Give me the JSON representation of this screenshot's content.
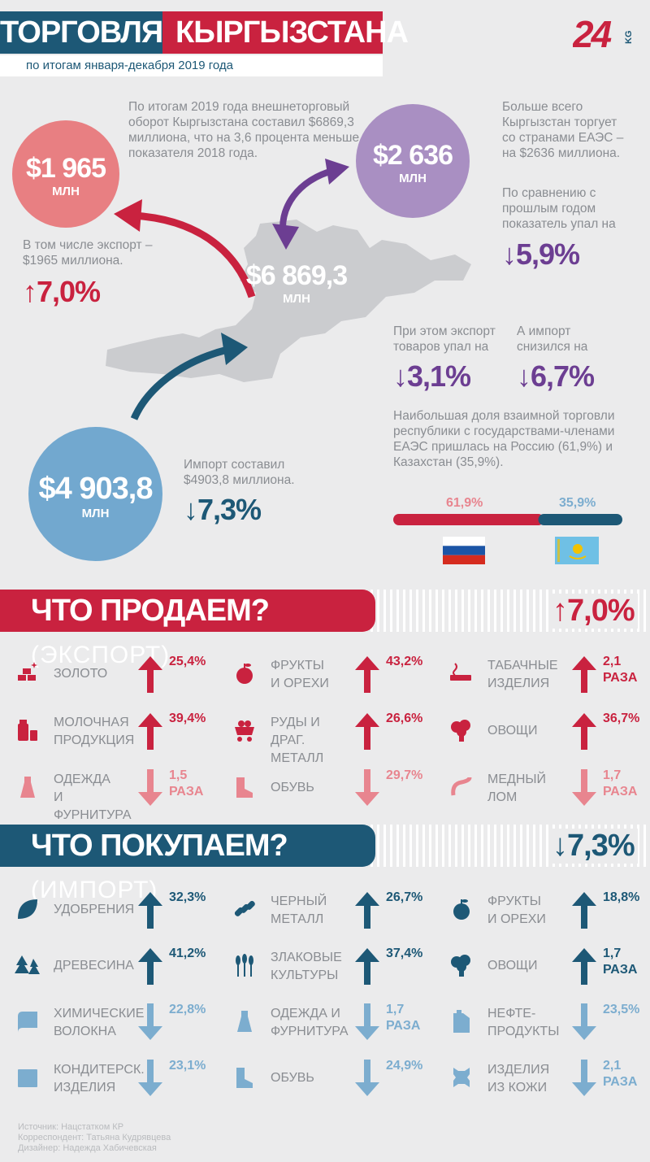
{
  "header": {
    "title_a": "ТОРГОВЛЯ",
    "title_b": "КЫРГЫЗСТАНА",
    "subtitle": "по итогам января-декабря 2019 года",
    "logo": "24.kg"
  },
  "colors": {
    "red": "#c9223f",
    "blue": "#1d5876",
    "purple": "#6c3e92",
    "light_red": "#e8858f",
    "light_blue": "#7cadcf"
  },
  "top": {
    "total_text": "По итогам 2019 года внешнеторговый оборот Кыргызстана составил $6869,3 миллиона, что на 3,6 процента меньше показателя 2018 года.",
    "export_circle": {
      "value": "$1 965",
      "unit": "МЛН"
    },
    "export_text": "В том числе экспорт – $1965 миллиона.",
    "export_pct": "7,0%",
    "eaeu_circle": {
      "value": "$2 636",
      "unit": "МЛН"
    },
    "eaeu_text": "Больше всего Кыргызстан торгует со странами ЕАЭС – на $2636 миллиона.",
    "eaeu_compare_text": "По сравнению с прошлым годом показатель упал на",
    "eaeu_pct": "5,9%",
    "total_map": {
      "value": "$6 869,3",
      "unit": "МЛН"
    },
    "eaeu_export_text": "При этом экспорт товаров упал на",
    "eaeu_export_pct": "3,1%",
    "eaeu_import_text": "А импорт снизился на",
    "eaeu_import_pct": "6,7%",
    "share_text": "Наибольшая доля взаимной торговли республики с государствами-членами ЕАЭС пришлась на Россию (61,9%) и Казахстан (35,9%).",
    "russia_share": 61.9,
    "russia_label": "61,9%",
    "kz_share": 35.9,
    "kz_label": "35,9%",
    "import_circle": {
      "value": "$4 903,8",
      "unit": "МЛН"
    },
    "import_text": "Импорт составил $4903,8 миллиона.",
    "import_pct": "7,3%"
  },
  "export": {
    "title": "ЧТО ПРОДАЕМ?",
    "title_sub": "(ЭКСПОРТ)",
    "pct": "7,0%",
    "items": [
      {
        "label": "ЗОЛОТО",
        "value": "25,4%",
        "dir": "up",
        "icon": "gold-bars-icon"
      },
      {
        "label": "ФРУКТЫ\nИ ОРЕХИ",
        "value": "43,2%",
        "dir": "up",
        "icon": "apple-icon"
      },
      {
        "label": "ТАБАЧНЫЕ\nИЗДЕЛИЯ",
        "value": "2,1\nРАЗА",
        "dir": "up",
        "icon": "cigarette-icon"
      },
      {
        "label": "МОЛОЧНАЯ\nПРОДУКЦИЯ",
        "value": "39,4%",
        "dir": "up",
        "icon": "milk-icon"
      },
      {
        "label": "РУДЫ И\nДРАГ. МЕТАЛЛ",
        "value": "26,6%",
        "dir": "up",
        "icon": "ore-cart-icon"
      },
      {
        "label": "ОВОЩИ",
        "value": "36,7%",
        "dir": "up",
        "icon": "broccoli-icon"
      },
      {
        "label": "ОДЕЖДА\nИ ФУРНИТУРА",
        "value": "1,5\nРАЗА",
        "dir": "down",
        "icon": "dress-icon"
      },
      {
        "label": "ОБУВЬ",
        "value": "29,7%",
        "dir": "down",
        "icon": "boot-icon"
      },
      {
        "label": "МЕДНЫЙ\nЛОМ",
        "value": "1,7\nРАЗА",
        "dir": "down",
        "icon": "copper-scrap-icon"
      }
    ]
  },
  "import": {
    "title": "ЧТО ПОКУПАЕМ?",
    "title_sub": "(ИМПОРТ)",
    "pct": "7,3%",
    "items": [
      {
        "label": "УДОБРЕНИЯ",
        "value": "32,3%",
        "dir": "up",
        "icon": "leaf-icon"
      },
      {
        "label": "ЧЕРНЫЙ\nМЕТАЛЛ",
        "value": "26,7%",
        "dir": "up",
        "icon": "chain-icon"
      },
      {
        "label": "ФРУКТЫ\nИ ОРЕХИ",
        "value": "18,8%",
        "dir": "up",
        "icon": "apple-icon"
      },
      {
        "label": "ДРЕВЕСИНА",
        "value": "41,2%",
        "dir": "up",
        "icon": "trees-icon"
      },
      {
        "label": "ЗЛАКОВЫЕ\nКУЛЬТУРЫ",
        "value": "37,4%",
        "dir": "up",
        "icon": "wheat-icon"
      },
      {
        "label": "ОВОЩИ",
        "value": "1,7\nРАЗА",
        "dir": "up",
        "icon": "broccoli-icon"
      },
      {
        "label": "ХИМИЧЕСКИЕ\nВОЛОКНА",
        "value": "22,8%",
        "dir": "down",
        "icon": "fabric-roll-icon"
      },
      {
        "label": "ОДЕЖДА И\nФУРНИТУРА",
        "value": "1,7\nРАЗА",
        "dir": "down",
        "icon": "dress-icon"
      },
      {
        "label": "НЕФТЕ-\nПРОДУКТЫ",
        "value": "23,5%",
        "dir": "down",
        "icon": "canister-icon"
      },
      {
        "label": "КОНДИТЕРСК.\nИЗДЕЛИЯ",
        "value": "23,1%",
        "dir": "down",
        "icon": "chocolate-icon"
      },
      {
        "label": "ОБУВЬ",
        "value": "24,9%",
        "dir": "down",
        "icon": "boot-icon"
      },
      {
        "label": "ИЗДЕЛИЯ\nИЗ КОЖИ",
        "value": "2,1\nРАЗА",
        "dir": "down",
        "icon": "leather-hide-icon"
      }
    ]
  },
  "credits": {
    "source": "Источник: Нацстатком КР",
    "correspondent": "Корреспондент: Татьяна Кудрявцева",
    "designer": "Дизайнер: Надежда Хабичевская"
  }
}
